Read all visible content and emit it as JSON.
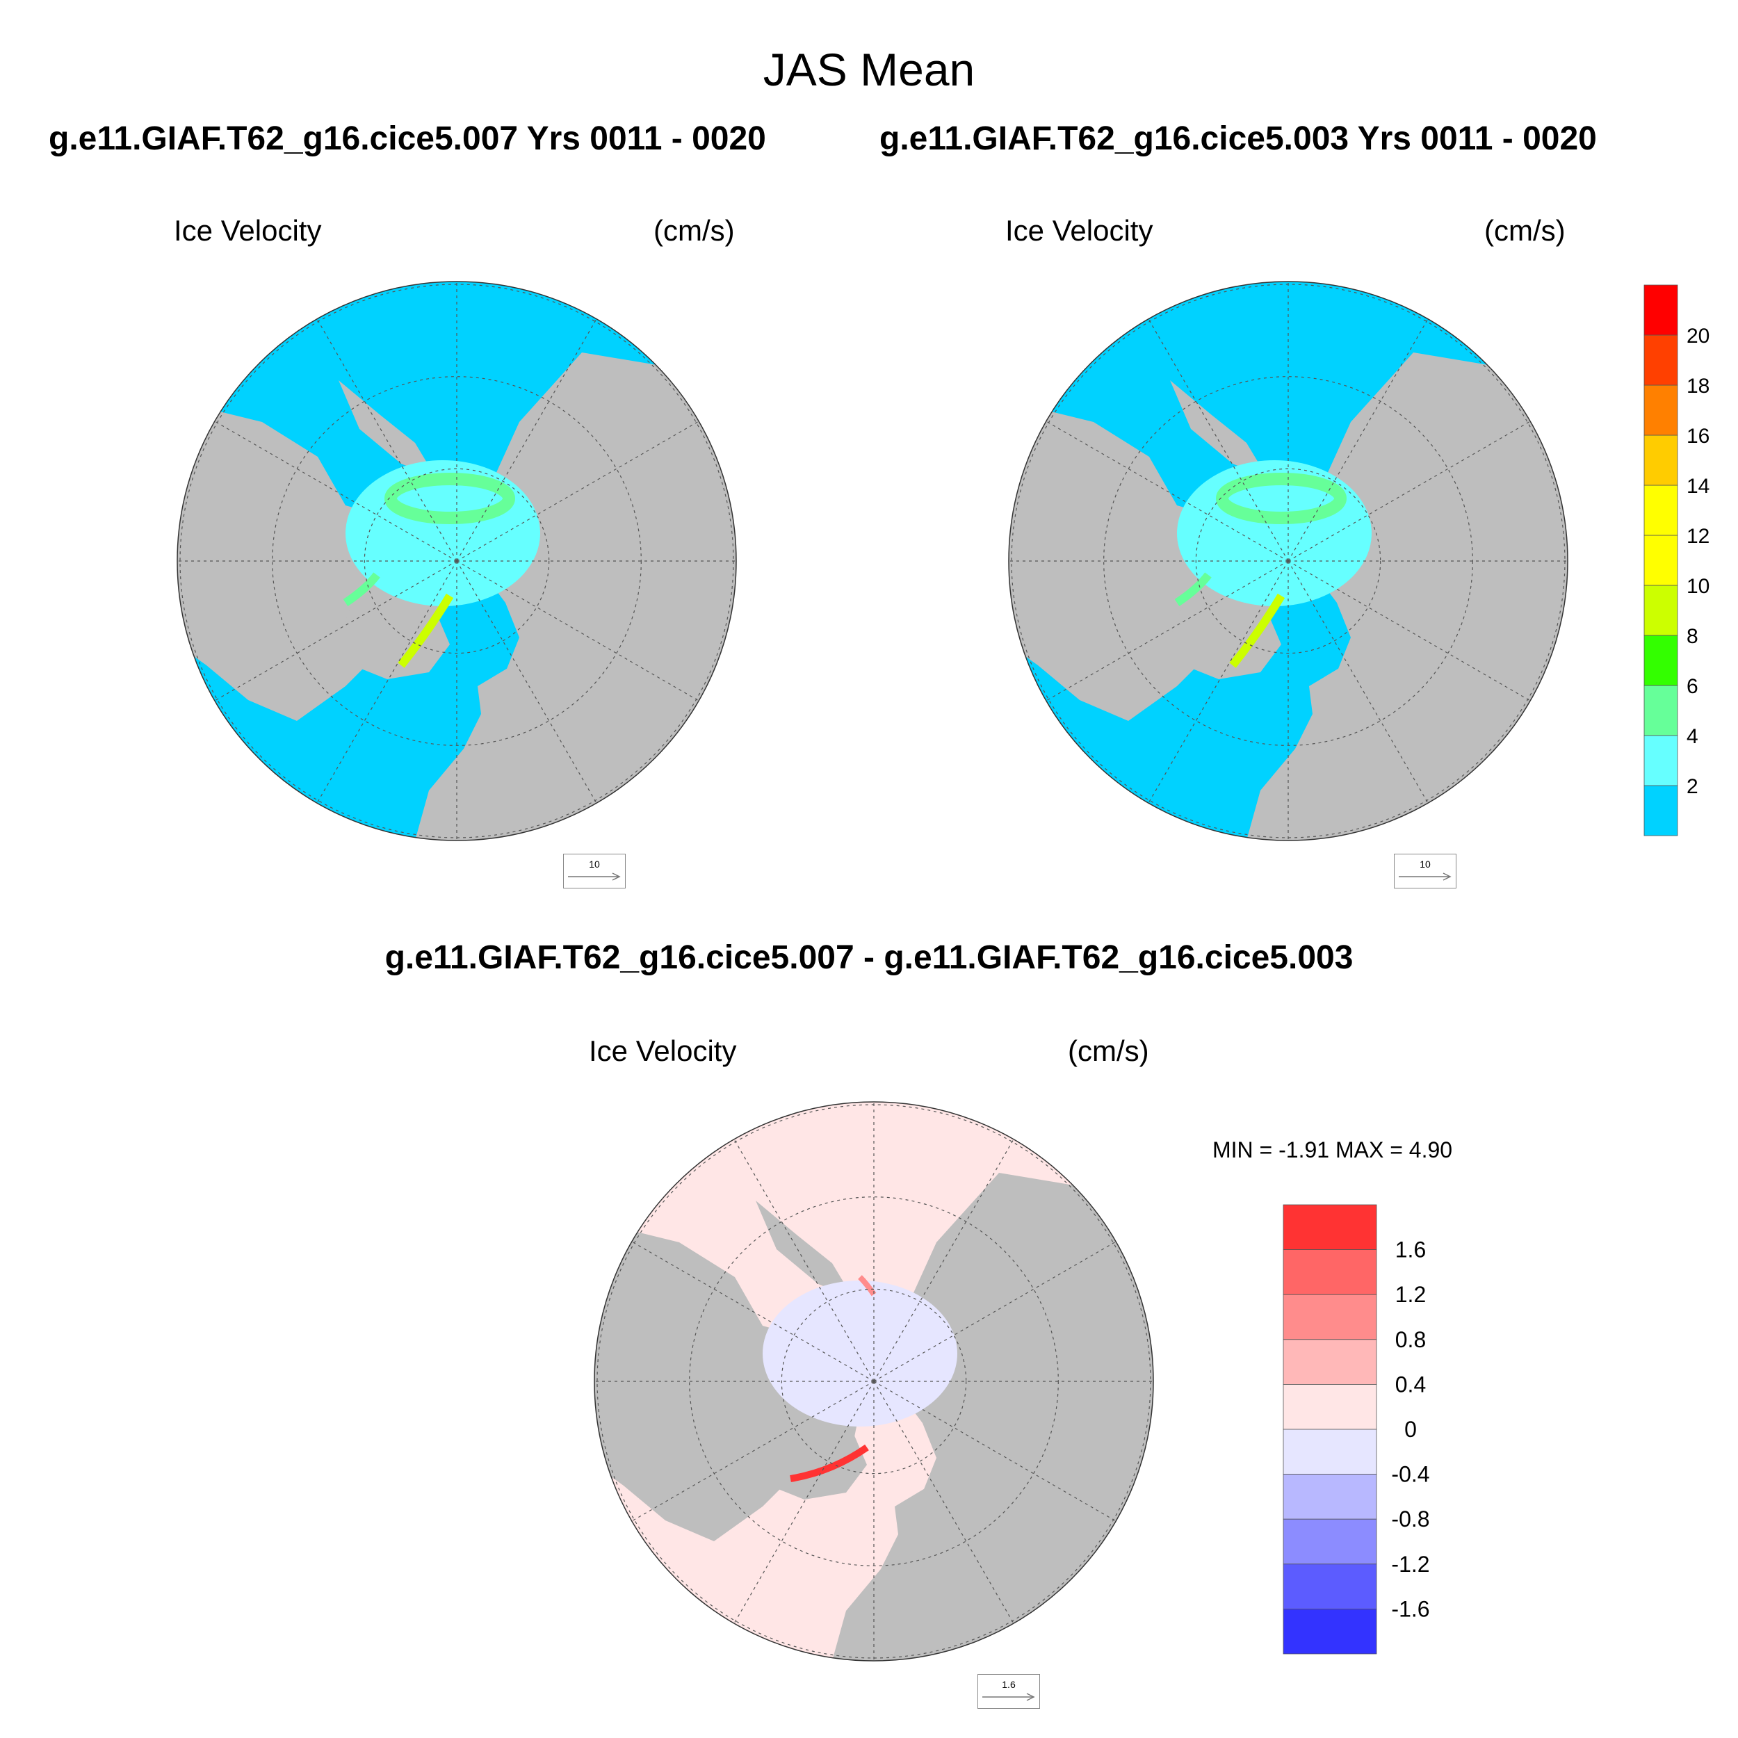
{
  "main_title": "JAS Mean",
  "case_a_title": "g.e11.GIAF.T62_g16.cice5.007  Yrs 0011 - 0020",
  "case_b_title": "g.e11.GIAF.T62_g16.cice5.003  Yrs 0011 - 0020",
  "diff_title": "g.e11.GIAF.T62_g16.cice5.007 - g.e11.GIAF.T62_g16.cice5.003",
  "panels": [
    {
      "left_label": "Ice Velocity",
      "right_label": "(cm/s)",
      "ref_vector": "10"
    },
    {
      "left_label": "Ice Velocity",
      "right_label": "(cm/s)",
      "ref_vector": "10"
    },
    {
      "left_label": "Ice Velocity",
      "right_label": "(cm/s)",
      "ref_vector": "1.6",
      "minmax": "MIN =  -1.91 MAX =   4.90"
    }
  ],
  "colorbar_main": {
    "labels": [
      "2",
      "4",
      "6",
      "8",
      "10",
      "12",
      "14",
      "16",
      "18",
      "20"
    ],
    "colors": [
      "#00d2ff",
      "#66ffff",
      "#66ff99",
      "#33ff00",
      "#ccff00",
      "#ffff00",
      "#ffff00",
      "#ffcc00",
      "#ff8000",
      "#ff4000",
      "#ff0000"
    ]
  },
  "colorbar_diff": {
    "labels": [
      "1.6",
      "1.2",
      "0.8",
      "0.4",
      "0",
      "-0.4",
      "-0.8",
      "-1.2",
      "-1.6"
    ],
    "colors": [
      "#ff3333",
      "#ff6666",
      "#ff8c8c",
      "#ffb8b8",
      "#ffe6e6",
      "#e6e6ff",
      "#b8b8ff",
      "#8c8cff",
      "#5c5cff",
      "#3333ff"
    ]
  },
  "map_colors": {
    "land": "#bebebe",
    "ocean_main": "#00d2ff",
    "ocean_diff": "#ffe6e6"
  }
}
